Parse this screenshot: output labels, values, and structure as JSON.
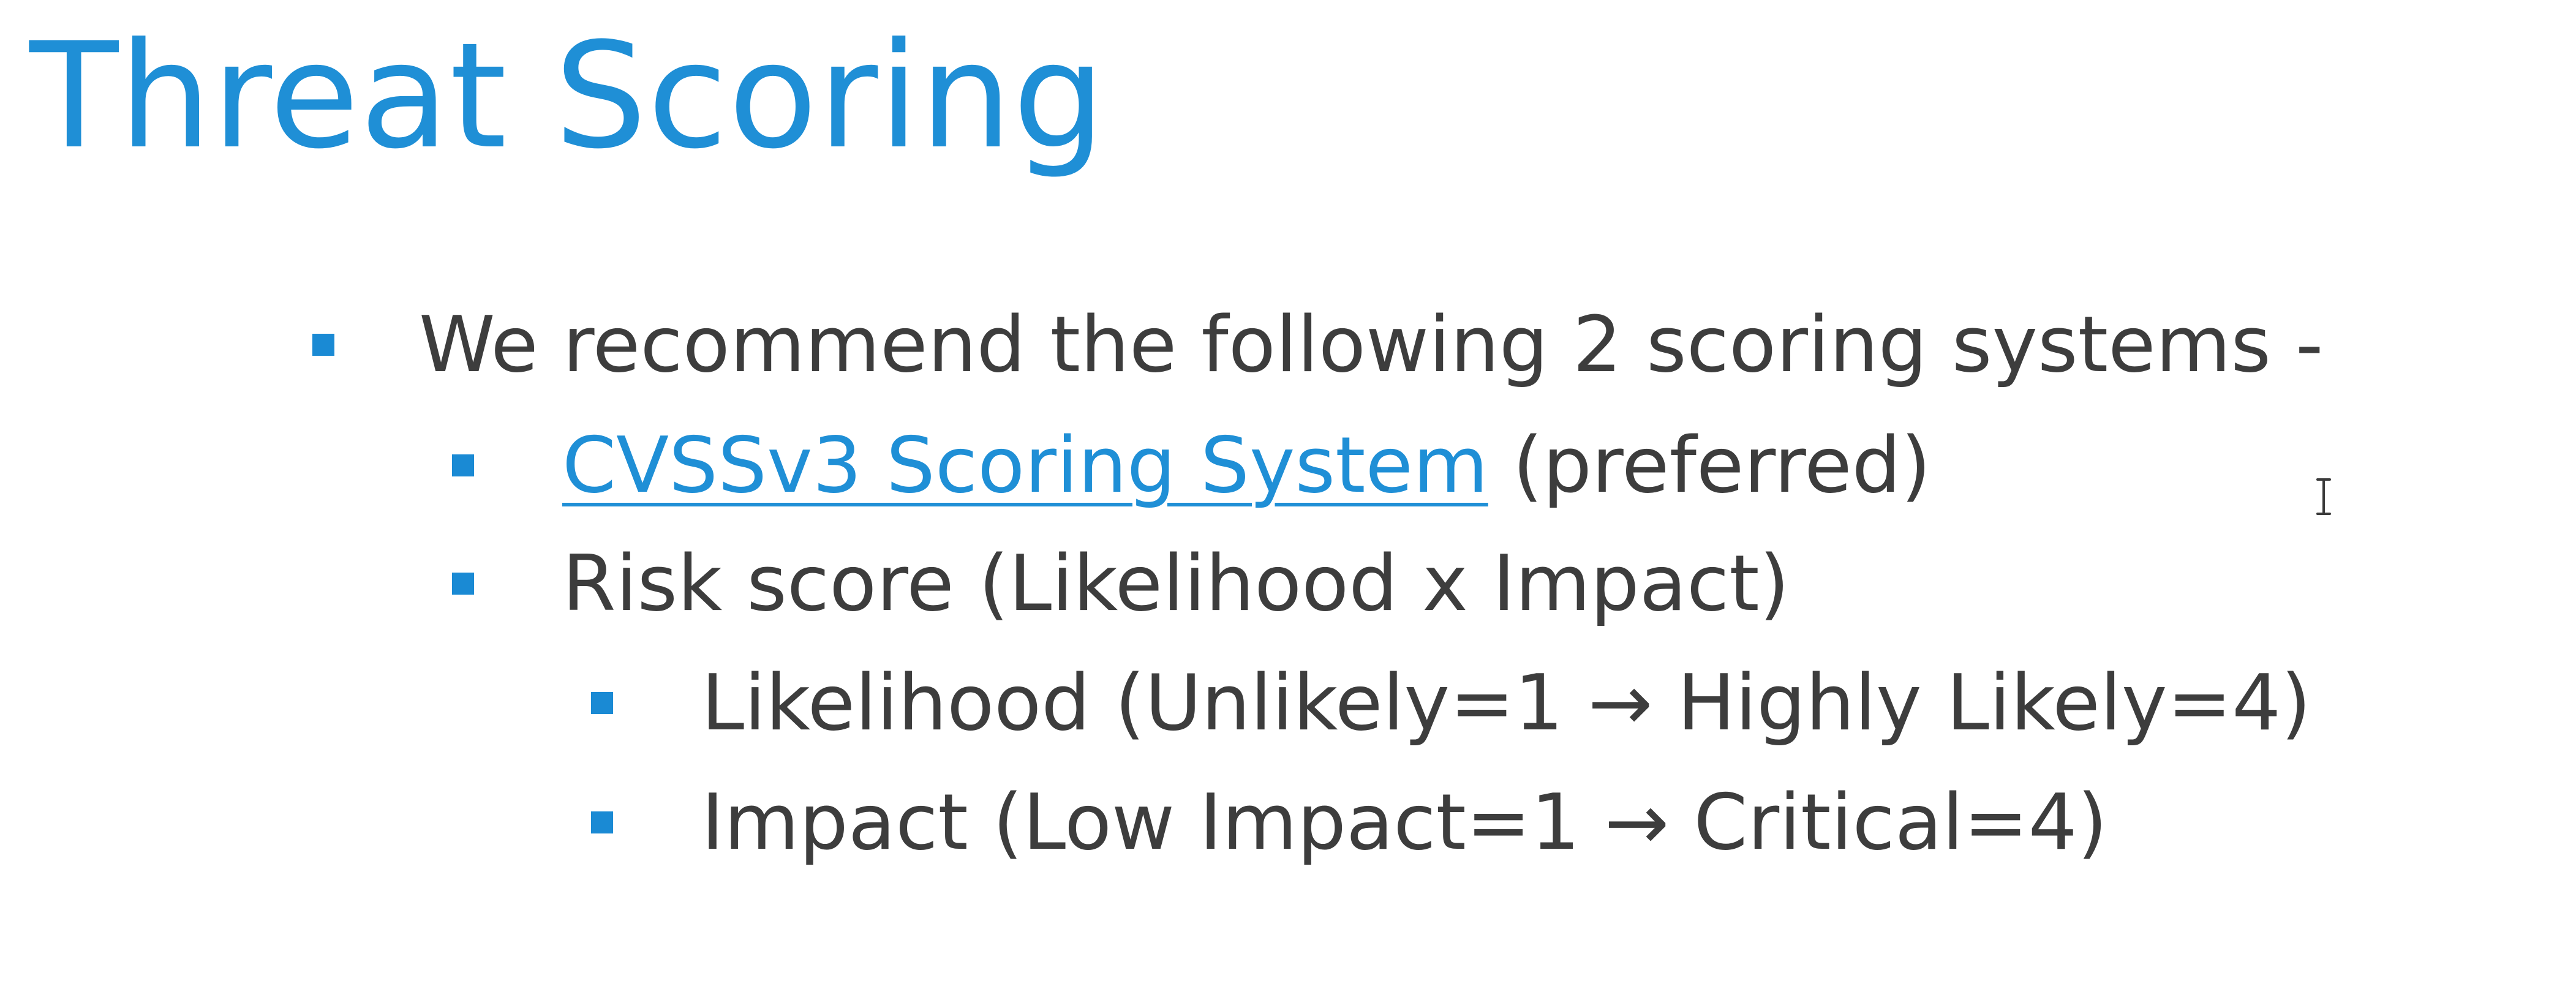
{
  "slide": {
    "title": "Threat Scoring",
    "bullets": {
      "intro": "We recommend the following 2 scoring systems -",
      "cvss_link": "CVSSv3 Scoring System",
      "cvss_suffix": " (preferred)",
      "risk": "Risk score (Likelihood x Impact)",
      "likelihood": "Likelihood (Unlikely=1 → Highly Likely=4)",
      "impact": "Impact (Low Impact=1 → Critical=4)"
    }
  },
  "colors": {
    "title": "#1f8fd6",
    "bullet_marker": "#1a8ad4",
    "body_text": "#3d3d3d",
    "link": "#1f8fd6"
  },
  "icons": {
    "bullet": "square-bullet-icon",
    "cursor": "text-cursor-icon"
  }
}
